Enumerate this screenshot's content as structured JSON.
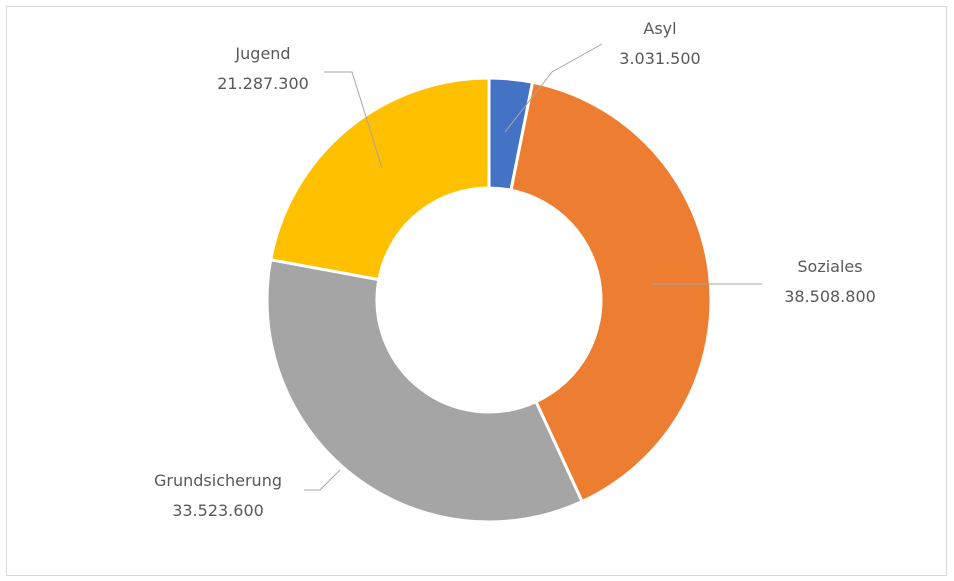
{
  "chart_data": {
    "type": "pie",
    "variant": "doughnut",
    "categories": [
      "Asyl",
      "Soziales",
      "Grundsicherung",
      "Jugend"
    ],
    "values": [
      3031500,
      38508800,
      33523600,
      21287300
    ],
    "value_labels": [
      "3.031.500",
      "38.508.800",
      "33.523.600",
      "21.287.300"
    ],
    "colors": [
      "#4472C4",
      "#ED7D31",
      "#A5A5A5",
      "#FFC000"
    ],
    "legend": "none",
    "data_labels": "category and value, outside with leader lines"
  }
}
